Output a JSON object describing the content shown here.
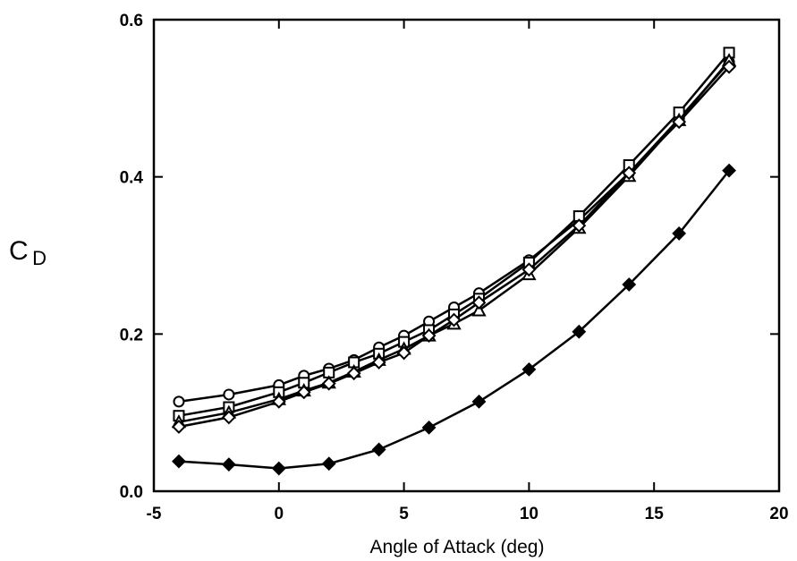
{
  "chart_data": {
    "type": "line",
    "title": "",
    "xlabel": "Angle of Attack (deg)",
    "ylabel": "C",
    "ylabel_subscript": "D",
    "xlim": [
      -5,
      20
    ],
    "ylim": [
      0.0,
      0.6
    ],
    "xticks": [
      -5,
      0,
      5,
      10,
      15,
      20
    ],
    "xtick_labels": [
      "-5",
      "0",
      "5",
      "10",
      "15",
      "20"
    ],
    "yticks": [
      0.0,
      0.2,
      0.4,
      0.6
    ],
    "ytick_labels": [
      "0.0",
      "0.2",
      "0.4",
      "0.6"
    ],
    "grid": false,
    "legend": "none",
    "series": [
      {
        "marker": "open-circle",
        "x": [
          -4,
          -2,
          0,
          1,
          2,
          3,
          4,
          5,
          6,
          7,
          8,
          10,
          12,
          14,
          16,
          18
        ],
        "y": [
          0.114,
          0.123,
          0.135,
          0.147,
          0.156,
          0.167,
          0.183,
          0.198,
          0.216,
          0.234,
          0.252,
          0.294,
          0.345,
          0.405,
          0.474,
          0.546
        ]
      },
      {
        "marker": "open-square",
        "x": [
          -4,
          -2,
          0,
          1,
          2,
          3,
          4,
          5,
          6,
          7,
          8,
          10,
          12,
          14,
          16,
          18
        ],
        "y": [
          0.096,
          0.107,
          0.126,
          0.138,
          0.151,
          0.164,
          0.175,
          0.19,
          0.205,
          0.225,
          0.245,
          0.291,
          0.35,
          0.415,
          0.482,
          0.558
        ]
      },
      {
        "marker": "open-triangle",
        "x": [
          -4,
          -2,
          0,
          1,
          2,
          3,
          4,
          5,
          6,
          7,
          8,
          10,
          12,
          14,
          16,
          18
        ],
        "y": [
          0.088,
          0.1,
          0.117,
          0.128,
          0.138,
          0.152,
          0.167,
          0.181,
          0.198,
          0.213,
          0.23,
          0.276,
          0.335,
          0.401,
          0.472,
          0.548
        ]
      },
      {
        "marker": "open-diamond",
        "x": [
          -4,
          -2,
          0,
          1,
          2,
          3,
          4,
          5,
          6,
          7,
          8,
          10,
          12,
          14,
          16,
          18
        ],
        "y": [
          0.082,
          0.094,
          0.114,
          0.126,
          0.137,
          0.15,
          0.164,
          0.176,
          0.198,
          0.218,
          0.24,
          0.282,
          0.338,
          0.405,
          0.47,
          0.54
        ]
      },
      {
        "marker": "filled-diamond",
        "x": [
          -4,
          -2,
          0,
          2,
          4,
          6,
          8,
          10,
          12,
          14,
          16,
          18
        ],
        "y": [
          0.038,
          0.034,
          0.029,
          0.035,
          0.053,
          0.081,
          0.114,
          0.155,
          0.203,
          0.263,
          0.328,
          0.408
        ]
      }
    ]
  }
}
